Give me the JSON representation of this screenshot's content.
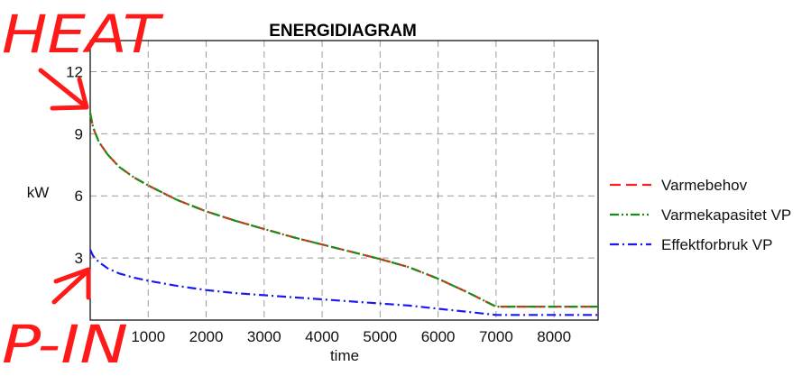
{
  "chart_data": {
    "type": "line",
    "title": "ENERGIDIAGRAM",
    "xlabel": "time",
    "ylabel": "kW",
    "xlim": [
      0,
      8760
    ],
    "ylim": [
      0,
      13.5
    ],
    "x_ticks": [
      1000,
      2000,
      3000,
      4000,
      5000,
      6000,
      7000,
      8000
    ],
    "y_ticks": [
      3,
      6,
      9,
      12
    ],
    "grid": true,
    "legend": "right",
    "series": [
      {
        "name": "Varmebehov",
        "color": "#ff2020",
        "dash": "dash",
        "x": [
          0,
          50,
          150,
          300,
          500,
          750,
          1000,
          1500,
          2000,
          2500,
          3000,
          3500,
          4000,
          4500,
          5000,
          5500,
          6000,
          6500,
          7000,
          8760
        ],
        "y": [
          10.0,
          9.3,
          8.6,
          8.0,
          7.4,
          6.9,
          6.5,
          5.8,
          5.25,
          4.8,
          4.4,
          4.0,
          3.65,
          3.3,
          2.95,
          2.55,
          2.0,
          1.35,
          0.65,
          0.65
        ]
      },
      {
        "name": "Varmekapasitet VP",
        "color": "#1a8c1a",
        "dash": "dashdotdot",
        "x": [
          0,
          50,
          150,
          300,
          500,
          750,
          1000,
          1500,
          2000,
          2500,
          3000,
          3500,
          4000,
          4500,
          5000,
          5500,
          6000,
          6500,
          7000,
          8760
        ],
        "y": [
          10.0,
          9.3,
          8.6,
          8.0,
          7.4,
          6.9,
          6.5,
          5.8,
          5.25,
          4.8,
          4.4,
          4.0,
          3.65,
          3.3,
          2.95,
          2.55,
          2.0,
          1.35,
          0.65,
          0.65
        ]
      },
      {
        "name": "Effektforbruk VP",
        "color": "#1a1aee",
        "dash": "dashdot",
        "x": [
          0,
          50,
          150,
          300,
          500,
          750,
          1000,
          1500,
          2000,
          2500,
          3000,
          3500,
          4000,
          4500,
          5000,
          5500,
          6000,
          6500,
          7000,
          8760
        ],
        "y": [
          3.4,
          3.1,
          2.8,
          2.5,
          2.25,
          2.05,
          1.9,
          1.65,
          1.45,
          1.3,
          1.2,
          1.1,
          1.0,
          0.9,
          0.8,
          0.7,
          0.55,
          0.4,
          0.25,
          0.25
        ]
      }
    ]
  },
  "annotations": {
    "heat": "HEAT",
    "p_in": "P-IN"
  }
}
